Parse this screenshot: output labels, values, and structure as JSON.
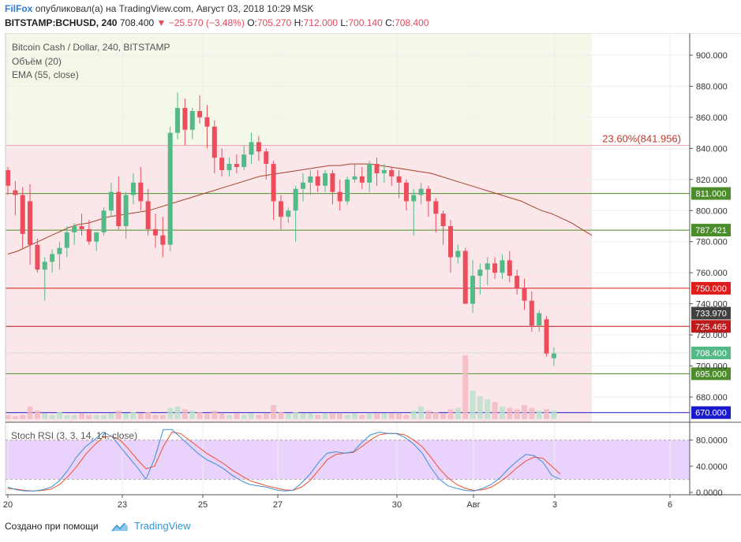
{
  "header": {
    "user": "FilFox",
    "published_text": "опубликовал(а) на TradingView.com, Август 03, 2018 10:29 MSK",
    "symbol": "BITSTAMP:BCHUSD, 240",
    "last": "708.400",
    "change": "−25.570 (−3.48%)",
    "ohlc": [
      {
        "k": "O:",
        "v": "705.270"
      },
      {
        "k": "H:",
        "v": "712.000"
      },
      {
        "k": "L:",
        "v": "700.140"
      },
      {
        "k": "C:",
        "v": "708.400"
      }
    ]
  },
  "legend": {
    "title": "Bitcoin Cash / Dollar, 240, BITSTAMP",
    "volume": "Объём (20)",
    "ema": "EMA (55, close)",
    "stoch": "Stoch RSI (3, 3, 14, 14, close)"
  },
  "footer": {
    "text": "Создано при помощи",
    "brand": "TradingView"
  },
  "colors": {
    "up": "#53b987",
    "down": "#eb4d5c",
    "ema": "#a8402a",
    "k_line": "#3d8fd6",
    "d_line": "#f0522b",
    "fib_zone": "#fbe7ea",
    "top_zone": "#f3f8e8",
    "stoch_band": "#e9d2fb"
  },
  "chart_data": {
    "type": "candlestick",
    "y_axis": {
      "min": 660,
      "max": 910,
      "ticks": [
        "900.000",
        "880.000",
        "860.000",
        "840.000",
        "820.000",
        "800.000",
        "780.000",
        "760.000",
        "740.000",
        "720.000",
        "700.000",
        "680.000"
      ]
    },
    "x_labels": [
      "20",
      "23",
      "25",
      "27",
      "30",
      "Авг",
      "3",
      "6"
    ],
    "fib": {
      "label": "23.60%(841.956)",
      "price": 841.956
    },
    "levels": [
      {
        "price": 811.0,
        "label": "811.000",
        "color": "#4c8c2b"
      },
      {
        "price": 787.421,
        "label": "787.421",
        "color": "#4c8c2b"
      },
      {
        "price": 750.0,
        "label": "750.000",
        "color": "#e01d1d"
      },
      {
        "price": 725.465,
        "label": "725.465",
        "color": "#c0191b"
      },
      {
        "price": 695.0,
        "label": "695.000",
        "color": "#4c8c2b"
      },
      {
        "price": 670.0,
        "label": "670.000",
        "color": "#1a1acc"
      }
    ],
    "markers": [
      {
        "price": 733.97,
        "label": "733.970",
        "color": "#404040"
      },
      {
        "price": 708.4,
        "label": "708.400",
        "color": "#53b987"
      }
    ],
    "candles": [
      [
        826,
        828,
        810,
        816
      ],
      [
        813,
        819,
        797,
        810
      ],
      [
        810,
        815,
        775,
        785
      ],
      [
        806,
        817,
        765,
        778
      ],
      [
        778,
        782,
        760,
        762
      ],
      [
        762,
        770,
        742,
        767
      ],
      [
        767,
        775,
        760,
        772
      ],
      [
        772,
        780,
        762,
        776
      ],
      [
        776,
        790,
        770,
        786
      ],
      [
        786,
        792,
        778,
        790
      ],
      [
        790,
        798,
        784,
        788
      ],
      [
        788,
        794,
        778,
        780
      ],
      [
        780,
        786,
        774,
        786
      ],
      [
        786,
        802,
        784,
        800
      ],
      [
        800,
        818,
        796,
        812
      ],
      [
        812,
        822,
        788,
        790
      ],
      [
        790,
        812,
        782,
        810
      ],
      [
        810,
        824,
        804,
        818
      ],
      [
        818,
        828,
        800,
        806
      ],
      [
        806,
        814,
        784,
        788
      ],
      [
        788,
        798,
        776,
        784
      ],
      [
        784,
        796,
        770,
        778
      ],
      [
        778,
        854,
        774,
        850
      ],
      [
        850,
        876,
        846,
        866
      ],
      [
        866,
        872,
        842,
        852
      ],
      [
        852,
        866,
        846,
        864
      ],
      [
        864,
        874,
        856,
        860
      ],
      [
        860,
        868,
        840,
        854
      ],
      [
        854,
        858,
        824,
        834
      ],
      [
        834,
        840,
        822,
        826
      ],
      [
        826,
        834,
        822,
        830
      ],
      [
        830,
        836,
        824,
        828
      ],
      [
        828,
        842,
        826,
        836
      ],
      [
        836,
        850,
        830,
        844
      ],
      [
        844,
        848,
        832,
        838
      ],
      [
        838,
        840,
        820,
        830
      ],
      [
        830,
        832,
        794,
        806
      ],
      [
        806,
        810,
        788,
        796
      ],
      [
        796,
        802,
        792,
        800
      ],
      [
        800,
        816,
        780,
        814
      ],
      [
        814,
        824,
        806,
        818
      ],
      [
        818,
        826,
        810,
        822
      ],
      [
        822,
        826,
        812,
        816
      ],
      [
        816,
        826,
        812,
        824
      ],
      [
        824,
        826,
        804,
        812
      ],
      [
        812,
        820,
        800,
        806
      ],
      [
        806,
        822,
        804,
        820
      ],
      [
        820,
        830,
        818,
        822
      ],
      [
        822,
        828,
        814,
        818
      ],
      [
        818,
        832,
        812,
        830
      ],
      [
        830,
        834,
        816,
        824
      ],
      [
        824,
        830,
        818,
        826
      ],
      [
        826,
        828,
        816,
        822
      ],
      [
        822,
        826,
        808,
        818
      ],
      [
        818,
        820,
        800,
        806
      ],
      [
        806,
        814,
        784,
        810
      ],
      [
        810,
        818,
        804,
        814
      ],
      [
        814,
        816,
        796,
        806
      ],
      [
        806,
        808,
        786,
        798
      ],
      [
        798,
        800,
        778,
        790
      ],
      [
        790,
        794,
        760,
        770
      ],
      [
        770,
        778,
        766,
        774
      ],
      [
        774,
        776,
        740,
        740
      ],
      [
        740,
        768,
        734,
        758
      ],
      [
        758,
        766,
        746,
        762
      ],
      [
        762,
        770,
        752,
        766
      ],
      [
        766,
        770,
        756,
        760
      ],
      [
        760,
        772,
        756,
        768
      ],
      [
        768,
        774,
        754,
        758
      ],
      [
        758,
        762,
        746,
        750
      ],
      [
        750,
        756,
        736,
        742
      ],
      [
        742,
        748,
        722,
        726
      ],
      [
        726,
        736,
        722,
        734
      ],
      [
        730,
        732,
        706,
        708
      ],
      [
        705,
        712,
        700,
        708
      ]
    ],
    "volume": [
      3,
      2,
      3,
      9,
      6,
      4,
      3,
      5,
      3,
      3,
      4,
      3,
      3,
      3,
      4,
      6,
      4,
      5,
      4,
      5,
      3,
      3,
      8,
      9,
      7,
      6,
      5,
      4,
      6,
      4,
      3,
      4,
      3,
      4,
      3,
      4,
      10,
      5,
      4,
      5,
      4,
      4,
      3,
      4,
      4,
      4,
      3,
      4,
      3,
      4,
      4,
      4,
      4,
      4,
      3,
      6,
      9,
      6,
      5,
      4,
      7,
      8,
      45,
      20,
      16,
      14,
      12,
      9,
      8,
      7,
      10,
      8,
      6,
      7,
      6
    ],
    "ema": [
      772,
      774,
      777,
      780,
      783,
      786,
      789,
      791,
      792,
      794,
      796,
      797,
      798,
      799,
      800,
      802,
      804,
      806,
      808,
      810,
      812,
      814,
      816,
      818,
      820,
      822,
      823,
      824,
      825,
      826,
      827,
      828,
      829,
      829,
      830,
      830,
      830,
      829,
      828,
      827,
      826,
      825,
      824,
      822,
      820,
      818,
      816,
      814,
      812,
      810,
      808,
      806,
      803,
      800,
      798,
      795,
      792,
      788,
      784
    ],
    "stoch": {
      "band": [
        20,
        80
      ],
      "ticks": [
        "80.0000",
        "40.0000",
        "0.0000"
      ],
      "k": [
        8,
        4,
        2,
        2,
        4,
        8,
        18,
        35,
        55,
        70,
        80,
        92,
        86,
        70,
        54,
        38,
        20,
        52,
        96,
        96,
        84,
        72,
        60,
        50,
        44,
        36,
        26,
        18,
        12,
        10,
        8,
        4,
        2,
        3,
        14,
        28,
        46,
        60,
        62,
        60,
        62,
        76,
        88,
        92,
        90,
        90,
        84,
        74,
        60,
        38,
        20,
        10,
        6,
        3,
        2,
        6,
        12,
        22,
        36,
        48,
        58,
        56,
        46,
        26,
        20
      ],
      "d": [
        6,
        5,
        3,
        2,
        3,
        5,
        12,
        25,
        40,
        58,
        72,
        84,
        86,
        80,
        66,
        50,
        36,
        40,
        70,
        92,
        90,
        80,
        70,
        60,
        52,
        44,
        34,
        26,
        18,
        14,
        10,
        7,
        4,
        3,
        8,
        18,
        34,
        50,
        58,
        60,
        61,
        70,
        80,
        88,
        90,
        90,
        88,
        80,
        70,
        54,
        36,
        22,
        12,
        6,
        3,
        4,
        8,
        16,
        26,
        38,
        48,
        54,
        52,
        40,
        28
      ]
    }
  }
}
